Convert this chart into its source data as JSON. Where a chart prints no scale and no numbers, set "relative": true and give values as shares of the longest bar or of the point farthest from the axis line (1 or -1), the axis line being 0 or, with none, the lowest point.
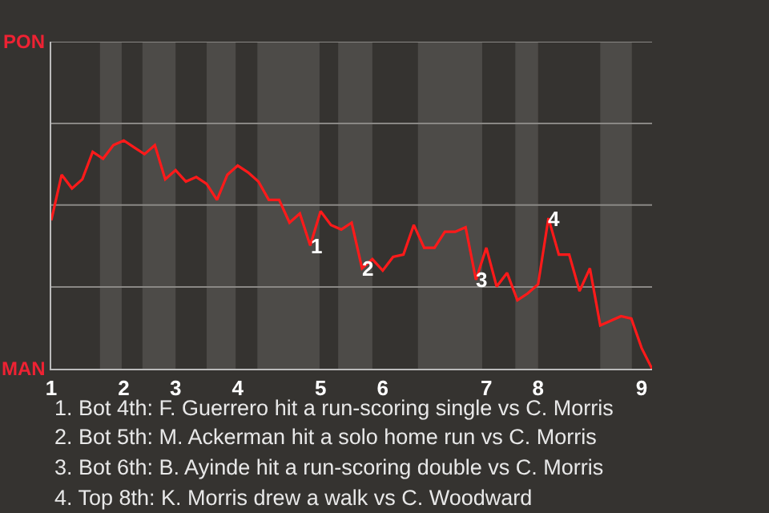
{
  "chart_data": {
    "type": "line",
    "relative": true,
    "categories": [
      "1",
      null,
      null,
      null,
      null,
      null,
      null,
      "2",
      null,
      null,
      null,
      null,
      "3",
      null,
      null,
      null,
      null,
      null,
      "4",
      null,
      null,
      null,
      null,
      null,
      null,
      null,
      "5",
      null,
      null,
      null,
      null,
      null,
      "6",
      null,
      null,
      null,
      null,
      null,
      null,
      null,
      null,
      null,
      "7",
      null,
      null,
      null,
      null,
      "8",
      null,
      null,
      null,
      null,
      null,
      null,
      null,
      null,
      null,
      "9",
      null
    ],
    "series": [
      {
        "color": "#ff1a1a",
        "values": [
          0.65,
          0.85,
          0.79,
          0.83,
          0.95,
          0.92,
          0.98,
          1,
          0.97,
          0.94,
          0.98,
          0.83,
          0.87,
          0.82,
          0.84,
          0.81,
          0.74,
          0.85,
          0.89,
          0.86,
          0.82,
          0.74,
          0.74,
          0.64,
          0.68,
          0.54,
          0.69,
          0.63,
          0.61,
          0.64,
          0.44,
          0.48,
          0.43,
          0.49,
          0.5,
          0.63,
          0.53,
          0.53,
          0.6,
          0.6,
          0.62,
          0.39,
          0.53,
          0.36,
          0.42,
          0.3,
          0.33,
          0.37,
          0.66,
          0.5,
          0.5,
          0.34,
          0.44,
          0.19,
          0.21,
          0.23,
          0.22,
          0.09,
          0
        ]
      }
    ],
    "marker": "none",
    "line_style": "solid",
    "ref_lines": [
      {
        "axis": "y",
        "value": 0.358,
        "color": "#8a8885"
      },
      {
        "axis": "y",
        "value": 0.717,
        "color": "#8a8885"
      },
      {
        "axis": "y",
        "value": 1.075,
        "color": "#8a8885"
      },
      {
        "axis": "y",
        "value": 1.433,
        "color": "#8a8885"
      }
    ],
    "annotations": [
      "PON",
      "MAN",
      {
        "text": "1",
        "y": 0.54
      },
      {
        "text": "2",
        "y": 0.44
      },
      {
        "text": "3",
        "y": 0.39
      },
      {
        "text": "4",
        "y": 0.66
      },
      "1. Bot 4th: F. Guerrero hit a run-scoring single vs C. Morris",
      "2. Bot 5th: M. Ackerman hit a solo home run vs C. Morris",
      "3. Bot 6th: B. Ayinde hit a run-scoring double vs C. Morris",
      "4. Top 8th: K. Morris drew a walk vs C. Woodward"
    ]
  }
}
